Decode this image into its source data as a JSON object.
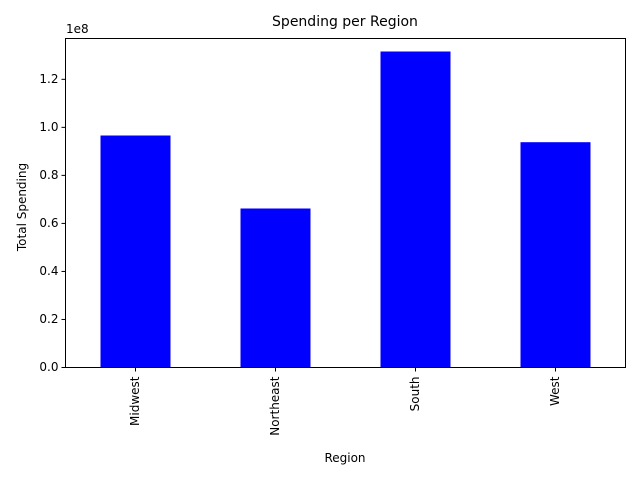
{
  "chart_data": {
    "type": "bar",
    "title": "Spending per Region",
    "xlabel": "Region",
    "ylabel": "Total Spending",
    "scale_label": "1e8",
    "scale_factor": 100000000,
    "categories": [
      "Midwest",
      "Northeast",
      "South",
      "West"
    ],
    "values": [
      96600000,
      66200000,
      131600000,
      93800000
    ],
    "ylim": [
      0,
      137000000
    ],
    "yticks": [
      0.0,
      0.2,
      0.4,
      0.6,
      0.8,
      1.0,
      1.2
    ],
    "ytick_labels": [
      "0.0",
      "0.2",
      "0.4",
      "0.6",
      "0.8",
      "1.0",
      "1.2"
    ],
    "bar_color": "#0000ff",
    "grid": false,
    "legend": "none"
  }
}
